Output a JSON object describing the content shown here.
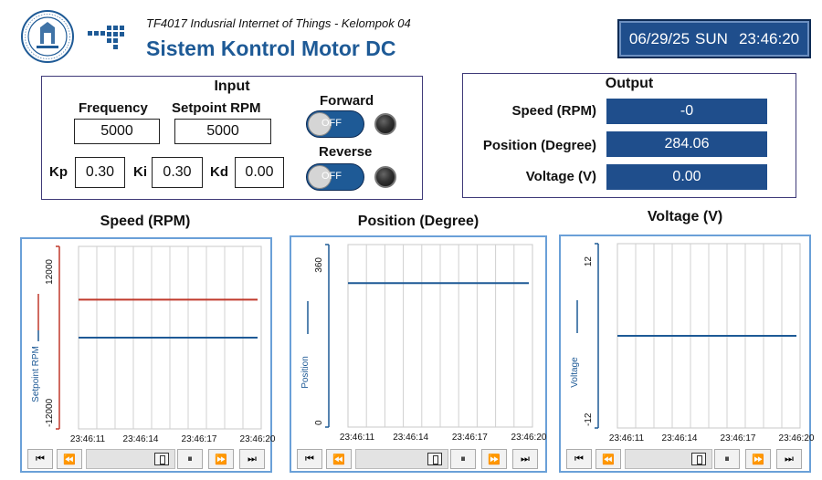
{
  "header": {
    "subtitle": "TF4017 Indusrial Internet of Things - Kelompok 04",
    "title": "Sistem Kontrol Motor DC",
    "date": "06/29/25",
    "day": "SUN",
    "time": "23:46:20",
    "logo_icon": "university-seal-icon"
  },
  "input": {
    "title": "Input",
    "frequency_label": "Frequency",
    "frequency_value": "5000",
    "setpoint_label": "Setpoint RPM",
    "setpoint_value": "5000",
    "kp_label": "Kp",
    "kp_value": "0.30",
    "ki_label": "Ki",
    "ki_value": "0.30",
    "kd_label": "Kd",
    "kd_value": "0.00",
    "forward_label": "Forward",
    "forward_state": "OFF",
    "reverse_label": "Reverse",
    "reverse_state": "OFF"
  },
  "output": {
    "title": "Output",
    "rows": [
      {
        "label": "Speed (RPM)",
        "value": "-0"
      },
      {
        "label": "Position (Degree)",
        "value": "284.06"
      },
      {
        "label": "Voltage (V)",
        "value": "0.00"
      }
    ]
  },
  "colors": {
    "accent": "#1f4e8c",
    "title_blue": "#1e5a96",
    "series_blue": "#1e5a96",
    "series_red": "#c0392b",
    "chart_border": "#6aa0d8"
  },
  "chart_data": [
    {
      "type": "line",
      "title": "Speed (RPM)",
      "ylabel": "Setpoint RPM",
      "x_ticks": [
        "23:46:11",
        "23:46:14",
        "23:46:17",
        "23:46:20"
      ],
      "y_ticks": [
        "12000",
        "-12000"
      ],
      "ylim": [
        -12000,
        12000
      ],
      "grid": true,
      "series": [
        {
          "name": "Setpoint",
          "color": "#c0392b",
          "values": [
            5000,
            5000
          ]
        },
        {
          "name": "RPM",
          "color": "#1e5a96",
          "values": [
            0,
            0
          ]
        }
      ]
    },
    {
      "type": "line",
      "title": "Position (Degree)",
      "ylabel": "Position",
      "x_ticks": [
        "23:46:11",
        "23:46:14",
        "23:46:17",
        "23:46:20"
      ],
      "y_ticks": [
        "360",
        "0"
      ],
      "ylim": [
        0,
        360
      ],
      "grid": true,
      "series": [
        {
          "color": "#1e5a96",
          "values": [
            284.06,
            284.06
          ]
        }
      ]
    },
    {
      "type": "line",
      "title": "Voltage (V)",
      "ylabel": "Voltage",
      "x_ticks": [
        "23:46:11",
        "23:46:14",
        "23:46:17",
        "23:46:20"
      ],
      "y_ticks": [
        "12",
        "-12"
      ],
      "ylim": [
        -12,
        12
      ],
      "grid": true,
      "series": [
        {
          "color": "#1e5a96",
          "values": [
            0,
            0
          ]
        }
      ]
    }
  ],
  "navigation": {
    "icons": [
      "skip-start-icon",
      "rewind-icon",
      "scroll-thumb-icon",
      "pause-icon",
      "fast-forward-icon",
      "skip-end-icon"
    ]
  }
}
